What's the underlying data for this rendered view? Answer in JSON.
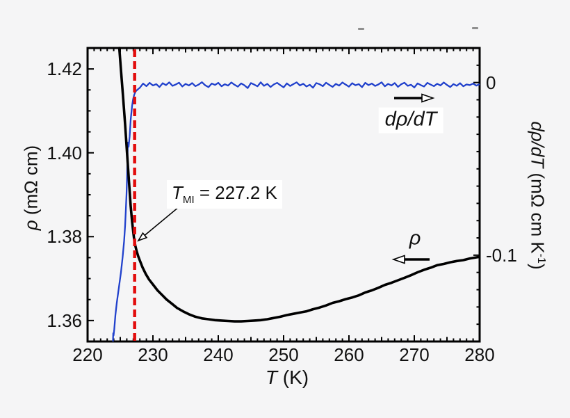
{
  "figure": {
    "background": "#f5f5f6",
    "frame_color": "#000000",
    "stray_mark_color": "#8f8f8f",
    "annotation": {
      "var": "T",
      "sub": "MI",
      "rest": " = 227.2 K"
    },
    "labels": {
      "rho_curve": "ρ",
      "drho_curve": "dρ/dT"
    },
    "x_axis": {
      "var": "T",
      "unit": " (K)"
    },
    "left_axis": {
      "var": "ρ",
      "unit": " (mΩ cm)"
    },
    "right_axis": {
      "var": "dρ/dT",
      "unit_prefix": " (mΩ cm K",
      "sup": "-1",
      "unit_suffix": ")"
    }
  },
  "chart_data": {
    "type": "line",
    "title": "",
    "xlabel": "T (K)",
    "ylabel_left": "ρ (mΩ cm)",
    "ylabel_right": "dρ/dT (mΩ cm K-1)",
    "xlim": [
      220,
      280
    ],
    "ylim_left": [
      1.355,
      1.425
    ],
    "ylim_right": [
      -0.15,
      0.02
    ],
    "grid": false,
    "axes": {
      "x": {
        "minor": 1,
        "medium": 5,
        "major": 10,
        "labels": [
          {
            "v": 220,
            "label": "220"
          },
          {
            "v": 230,
            "label": "230"
          },
          {
            "v": 240,
            "label": "240"
          },
          {
            "v": 250,
            "label": "250"
          },
          {
            "v": 260,
            "label": "260"
          },
          {
            "v": 270,
            "label": "270"
          },
          {
            "v": 280,
            "label": "280"
          }
        ]
      },
      "left": {
        "minor": 0.005,
        "major": 0.02,
        "labels": [
          {
            "v": 1.36,
            "label": "1.36"
          },
          {
            "v": 1.38,
            "label": "1.38"
          },
          {
            "v": 1.4,
            "label": "1.40"
          },
          {
            "v": 1.42,
            "label": "1.42"
          }
        ]
      },
      "right": {
        "minor": 0.01,
        "major": 0.1,
        "labels": [
          {
            "v": 0,
            "label": "0"
          },
          {
            "v": -0.1,
            "label": "-0.1"
          }
        ]
      }
    },
    "vline": {
      "x": 227.2,
      "color": "#e20d0d",
      "width": 4.5,
      "dash": [
        11,
        6
      ]
    },
    "annotation": {
      "text": "T_MI = 227.2 K",
      "x": 227.2
    },
    "series": [
      {
        "name": "rho",
        "label": "ρ",
        "axis": "left",
        "color": "#000000",
        "width": 3.6,
        "points": [
          [
            224.85,
            1.425
          ],
          [
            225.1,
            1.42
          ],
          [
            225.45,
            1.413
          ],
          [
            225.75,
            1.4065
          ],
          [
            226.0,
            1.4008
          ],
          [
            226.2,
            1.3962
          ],
          [
            226.4,
            1.3916
          ],
          [
            226.6,
            1.3873
          ],
          [
            226.8,
            1.3838
          ],
          [
            227.0,
            1.381
          ],
          [
            227.15,
            1.3791
          ],
          [
            227.3,
            1.3779
          ],
          [
            227.5,
            1.3766
          ],
          [
            227.75,
            1.3753
          ],
          [
            228.0,
            1.3743
          ],
          [
            228.4,
            1.3727
          ],
          [
            228.9,
            1.3711
          ],
          [
            229.4,
            1.3698
          ],
          [
            230.0,
            1.3686
          ],
          [
            230.7,
            1.3672
          ],
          [
            231.4,
            1.3661
          ],
          [
            232.1,
            1.365
          ],
          [
            232.9,
            1.364
          ],
          [
            233.7,
            1.363
          ],
          [
            234.6,
            1.3622
          ],
          [
            235.5,
            1.3615
          ],
          [
            236.5,
            1.3609
          ],
          [
            237.5,
            1.3605
          ],
          [
            238.5,
            1.3603
          ],
          [
            239.5,
            1.3601
          ],
          [
            240.5,
            1.36
          ],
          [
            241.5,
            1.3599
          ],
          [
            242.5,
            1.3598
          ],
          [
            243.5,
            1.3598
          ],
          [
            244.5,
            1.3599
          ],
          [
            245.5,
            1.36
          ],
          [
            246.5,
            1.3601
          ],
          [
            247.5,
            1.3603
          ],
          [
            248.5,
            1.3606
          ],
          [
            249.5,
            1.3609
          ],
          [
            250.5,
            1.3613
          ],
          [
            251.5,
            1.3616
          ],
          [
            252.5,
            1.3619
          ],
          [
            253.5,
            1.3622
          ],
          [
            254.5,
            1.3627
          ],
          [
            255.5,
            1.3631
          ],
          [
            256.5,
            1.3636
          ],
          [
            257.5,
            1.3642
          ],
          [
            258.5,
            1.3646
          ],
          [
            259.5,
            1.3651
          ],
          [
            260.5,
            1.3655
          ],
          [
            261.5,
            1.366
          ],
          [
            262.5,
            1.3667
          ],
          [
            263.5,
            1.3672
          ],
          [
            264.5,
            1.3678
          ],
          [
            265.5,
            1.3685
          ],
          [
            266.5,
            1.369
          ],
          [
            267.5,
            1.3696
          ],
          [
            268.5,
            1.3702
          ],
          [
            269.5,
            1.3708
          ],
          [
            270.5,
            1.3715
          ],
          [
            271.5,
            1.3721
          ],
          [
            272.5,
            1.3726
          ],
          [
            273.5,
            1.3732
          ],
          [
            274.5,
            1.3735
          ],
          [
            275.5,
            1.3739
          ],
          [
            276.5,
            1.3742
          ],
          [
            277.5,
            1.3744
          ],
          [
            278.5,
            1.3748
          ],
          [
            279.3,
            1.375
          ],
          [
            280.0,
            1.3752
          ]
        ]
      },
      {
        "name": "drho_dT",
        "label": "dρ/dT",
        "axis": "right",
        "color": "#2141cc",
        "width": 2.3,
        "points": [
          [
            223.88,
            -0.15
          ],
          [
            223.93,
            -0.1452
          ],
          [
            223.98,
            -0.1465
          ],
          [
            224.08,
            -0.1428
          ],
          [
            224.26,
            -0.1348
          ],
          [
            224.47,
            -0.1276
          ],
          [
            224.79,
            -0.1188
          ],
          [
            225.11,
            -0.11
          ],
          [
            225.37,
            -0.1008
          ],
          [
            225.59,
            -0.092
          ],
          [
            225.74,
            -0.0828
          ],
          [
            225.85,
            -0.074
          ],
          [
            225.96,
            -0.0648
          ],
          [
            226.03,
            -0.056
          ],
          [
            226.09,
            -0.0476
          ],
          [
            226.13,
            -0.04
          ],
          [
            226.17,
            -0.0348
          ],
          [
            226.28,
            -0.0372
          ],
          [
            226.44,
            -0.0312
          ],
          [
            226.6,
            -0.0216
          ],
          [
            226.81,
            -0.0136
          ],
          [
            226.97,
            -0.0096
          ],
          [
            227.13,
            -0.0072
          ],
          [
            227.34,
            -0.0052
          ],
          [
            227.55,
            -0.0044
          ],
          [
            227.8,
            -0.0036
          ],
          [
            228.0,
            -0.003
          ]
        ],
        "plateau": {
          "t0": 228.5,
          "dt": 0.5,
          "values": [
            -0.0006,
            -0.0021,
            -0.0002,
            -0.0017,
            -0.0009,
            -0.0026,
            -0.0004,
            -0.0015,
            0.0001,
            -0.0019,
            -0.0011,
            -0.0001,
            -0.0023,
            -0.0008,
            -0.0017,
            -0.0003,
            -0.0021,
            -0.0012,
            0.0002,
            -0.0016,
            -0.0027,
            -0.0006,
            -0.0014,
            -0.0002,
            -0.0022,
            -0.001,
            -0.0018,
            0.0,
            -0.0013,
            -0.0024,
            -0.0005,
            -0.0016,
            -0.0032,
            -0.0003,
            -0.0012,
            -0.0022,
            0.0001,
            -0.0019,
            -0.0008,
            -0.0026,
            -0.0011,
            -0.0002,
            -0.0015,
            -0.0028,
            -0.0005,
            -0.002,
            -0.0009,
            0.0001,
            -0.0017,
            -0.0007,
            -0.0023,
            -0.0013,
            -0.003,
            -0.0003,
            -0.001,
            -0.0021,
            -0.0001,
            -0.0014,
            -0.0025,
            -0.0008,
            -0.0018,
            0.0,
            -0.0012,
            -0.0024,
            -0.0004,
            -0.0016,
            -0.0009,
            -0.0027,
            -0.0002,
            -0.0015,
            -0.0006,
            -0.002,
            -0.0011,
            0.0001,
            -0.0022,
            -0.0008,
            -0.0017,
            -0.0003,
            -0.0025,
            -0.001,
            -0.0001,
            -0.0019,
            -0.0013,
            -0.0029,
            -0.0005,
            -0.0015,
            -0.0023,
            -0.0002,
            -0.0012,
            -0.0021,
            -0.0007,
            -0.0017,
            0.0,
            -0.0014,
            -0.0026,
            -0.0009,
            -0.0019,
            -0.0004,
            -0.0022,
            -0.0011,
            -0.0015,
            -0.0006,
            -0.0018,
            -0.001
          ]
        }
      }
    ]
  }
}
